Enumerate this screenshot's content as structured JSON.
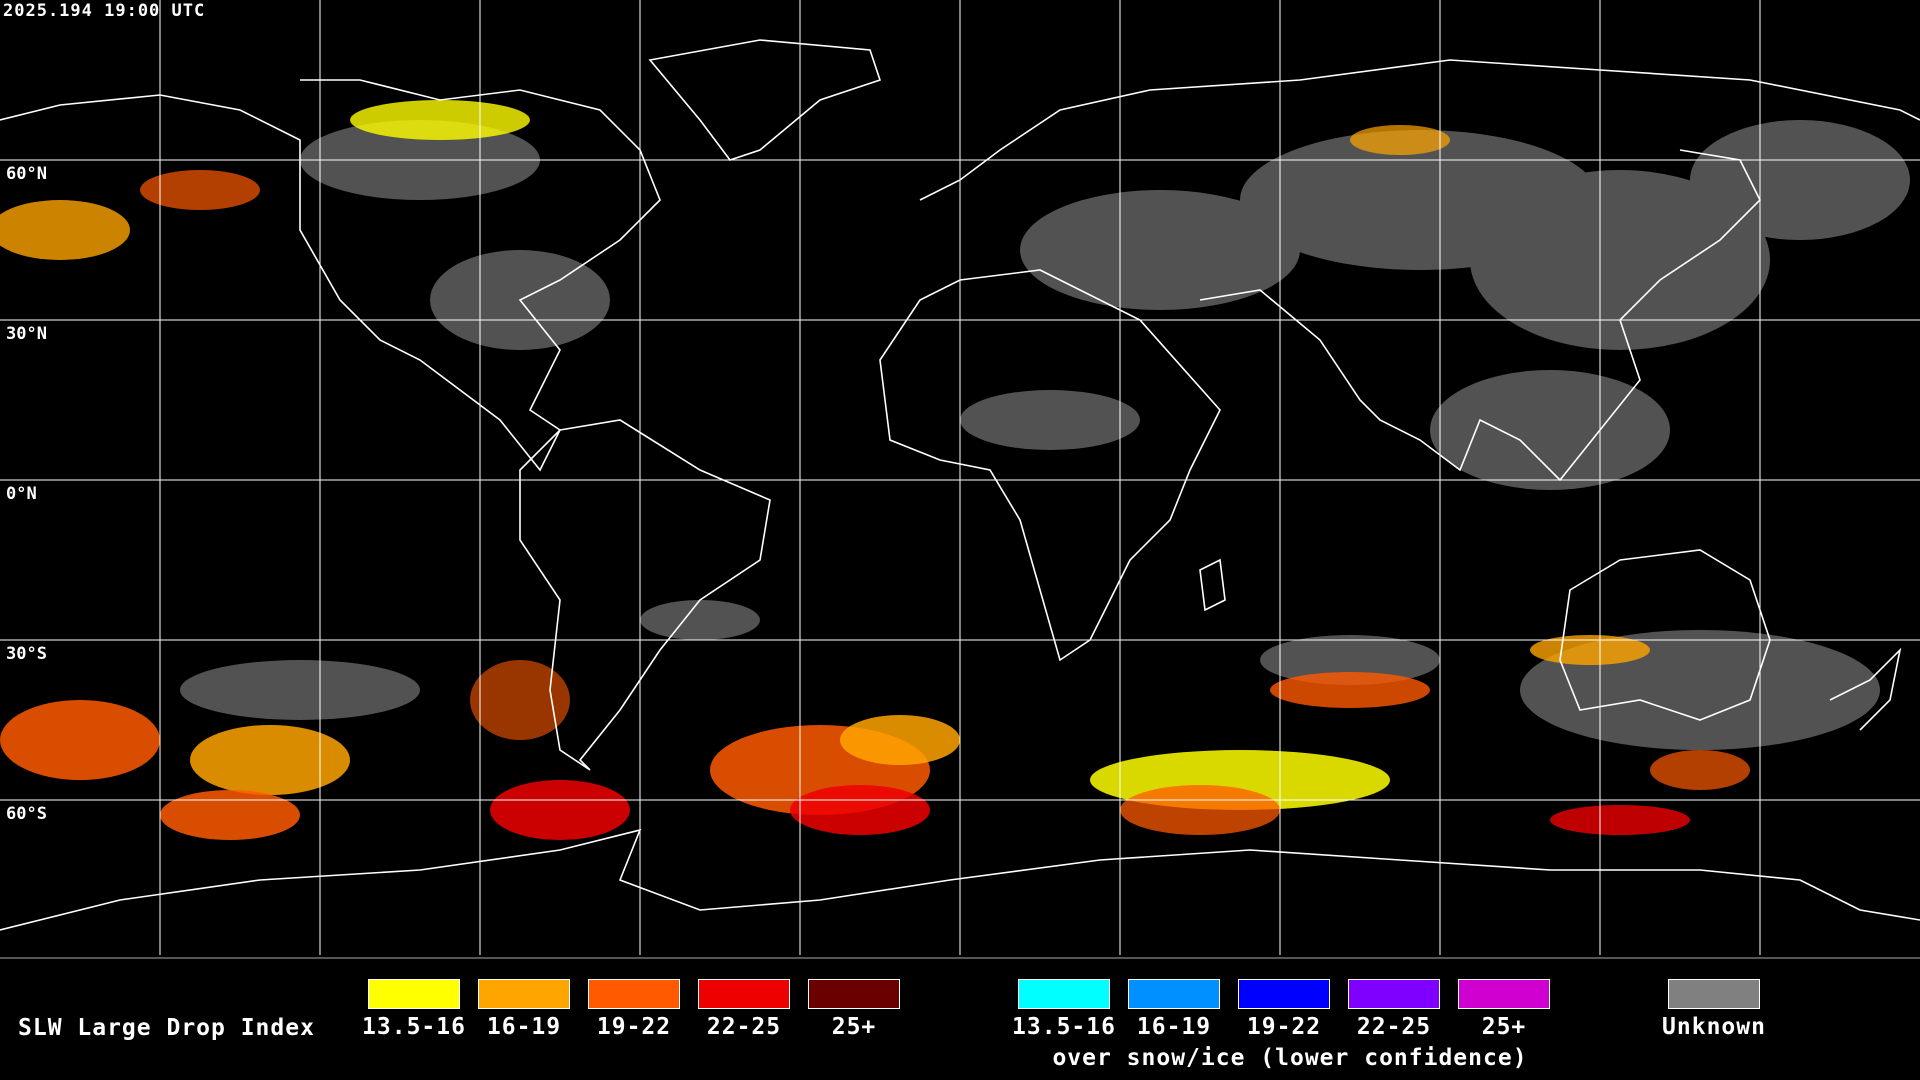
{
  "timestamp": "2025.194 19:00 UTC",
  "latitude_labels": [
    "60°N",
    "30°N",
    "0°N",
    "30°S",
    "60°S"
  ],
  "legend": {
    "title": "SLW Large Drop Index",
    "normal": [
      {
        "label": "13.5-16",
        "color": "#ffff00"
      },
      {
        "label": "16-19",
        "color": "#ffa500"
      },
      {
        "label": "19-22",
        "color": "#ff5a00"
      },
      {
        "label": "22-25",
        "color": "#ee0000"
      },
      {
        "label": "25+",
        "color": "#6b0000"
      }
    ],
    "snow_ice": [
      {
        "label": "13.5-16",
        "color": "#00ffff"
      },
      {
        "label": "16-19",
        "color": "#0090ff"
      },
      {
        "label": "19-22",
        "color": "#0000ff"
      },
      {
        "label": "22-25",
        "color": "#8000ff"
      },
      {
        "label": "25+",
        "color": "#d000d0"
      }
    ],
    "snow_ice_caption": "over snow/ice (lower confidence)",
    "unknown": {
      "label": "Unknown",
      "color": "#808080"
    }
  }
}
